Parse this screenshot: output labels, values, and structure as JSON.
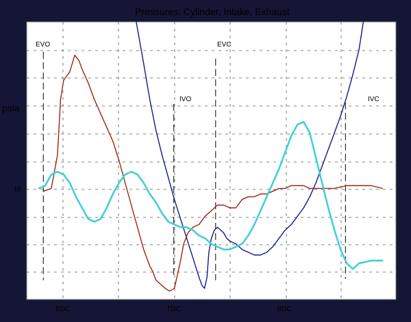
{
  "chart_data": {
    "type": "line",
    "title": "Pressures: Cylinder, Intake, Exhaust",
    "ylabel": "psia",
    "xlabel": "",
    "x_range": [
      0,
      600
    ],
    "y_range": [
      0,
      100
    ],
    "y_tick_labels": [
      {
        "value": 40,
        "label": "15"
      }
    ],
    "x_tick_labels": [
      {
        "value": 120,
        "label": "BDC"
      },
      {
        "value": 300,
        "label": "TDC"
      },
      {
        "value": 480,
        "label": "BDC"
      }
    ],
    "grid": true,
    "event_markers": [
      {
        "label": "EVO",
        "x": 27
      },
      {
        "label": "IVO",
        "x": 239
      },
      {
        "label": "EVC",
        "x": 307
      },
      {
        "label": "IVC",
        "x": 518
      }
    ],
    "series": [
      {
        "key": "cylinder",
        "color": "#0a1a8a",
        "points": [
          [
            178,
            100
          ],
          [
            190,
            85
          ],
          [
            200,
            72
          ],
          [
            210,
            61
          ],
          [
            220,
            52
          ],
          [
            230,
            44
          ],
          [
            240,
            36
          ],
          [
            250,
            29
          ],
          [
            260,
            22
          ],
          [
            270,
            15
          ],
          [
            280,
            8
          ],
          [
            285,
            5
          ],
          [
            289,
            4
          ],
          [
            293,
            8
          ],
          [
            296,
            17
          ],
          [
            300,
            22
          ],
          [
            305,
            25
          ],
          [
            310,
            26
          ],
          [
            315,
            25
          ],
          [
            320,
            24
          ],
          [
            325,
            22
          ],
          [
            330,
            21
          ],
          [
            340,
            20
          ],
          [
            350,
            18
          ],
          [
            360,
            17
          ],
          [
            370,
            16
          ],
          [
            380,
            16
          ],
          [
            390,
            17
          ],
          [
            400,
            19
          ],
          [
            410,
            22
          ],
          [
            420,
            25
          ],
          [
            430,
            27
          ],
          [
            440,
            30
          ],
          [
            450,
            33
          ],
          [
            460,
            37
          ],
          [
            470,
            42
          ],
          [
            480,
            48
          ],
          [
            490,
            54
          ],
          [
            500,
            60
          ],
          [
            510,
            66
          ],
          [
            520,
            73
          ],
          [
            530,
            81
          ],
          [
            540,
            90
          ],
          [
            547,
            100
          ]
        ]
      },
      {
        "key": "exhaust",
        "color": "#a02010",
        "points": [
          [
            27,
            39
          ],
          [
            40,
            40
          ],
          [
            50,
            52
          ],
          [
            55,
            72
          ],
          [
            60,
            79
          ],
          [
            70,
            82
          ],
          [
            78,
            88
          ],
          [
            85,
            86
          ],
          [
            90,
            83
          ],
          [
            100,
            78
          ],
          [
            110,
            72
          ],
          [
            120,
            67
          ],
          [
            130,
            62
          ],
          [
            140,
            57
          ],
          [
            150,
            50
          ],
          [
            160,
            42
          ],
          [
            170,
            34
          ],
          [
            180,
            26
          ],
          [
            190,
            18
          ],
          [
            200,
            12
          ],
          [
            205,
            10
          ],
          [
            210,
            7
          ],
          [
            220,
            5
          ],
          [
            225,
            4
          ],
          [
            232,
            3
          ],
          [
            240,
            4
          ],
          [
            245,
            9
          ],
          [
            250,
            14
          ],
          [
            255,
            20
          ],
          [
            262,
            24
          ],
          [
            270,
            26
          ],
          [
            280,
            27
          ],
          [
            290,
            30
          ],
          [
            300,
            32
          ],
          [
            310,
            34
          ],
          [
            320,
            34
          ],
          [
            330,
            33
          ],
          [
            340,
            33
          ],
          [
            350,
            36
          ],
          [
            360,
            37
          ],
          [
            370,
            37
          ],
          [
            380,
            38
          ],
          [
            390,
            38
          ],
          [
            400,
            39
          ],
          [
            410,
            40
          ],
          [
            420,
            40
          ],
          [
            430,
            41
          ],
          [
            440,
            41
          ],
          [
            450,
            41
          ],
          [
            460,
            40
          ],
          [
            480,
            40
          ],
          [
            500,
            40
          ],
          [
            520,
            41
          ],
          [
            540,
            41
          ],
          [
            560,
            41
          ],
          [
            578,
            40
          ]
        ]
      },
      {
        "key": "intake",
        "color": "#40d0d8",
        "points": [
          [
            20,
            40
          ],
          [
            30,
            41
          ],
          [
            40,
            45
          ],
          [
            50,
            46
          ],
          [
            60,
            45
          ],
          [
            70,
            42
          ],
          [
            80,
            37
          ],
          [
            90,
            33
          ],
          [
            100,
            29
          ],
          [
            110,
            28
          ],
          [
            120,
            29
          ],
          [
            130,
            33
          ],
          [
            140,
            38
          ],
          [
            150,
            42
          ],
          [
            160,
            45
          ],
          [
            170,
            46
          ],
          [
            180,
            45
          ],
          [
            190,
            42
          ],
          [
            200,
            38
          ],
          [
            210,
            35
          ],
          [
            220,
            31
          ],
          [
            230,
            28
          ],
          [
            240,
            27
          ],
          [
            250,
            26
          ],
          [
            260,
            26
          ],
          [
            270,
            25
          ],
          [
            280,
            23
          ],
          [
            290,
            22
          ],
          [
            300,
            20
          ],
          [
            310,
            19
          ],
          [
            320,
            18
          ],
          [
            330,
            18
          ],
          [
            340,
            19
          ],
          [
            350,
            20
          ],
          [
            360,
            23
          ],
          [
            370,
            27
          ],
          [
            380,
            32
          ],
          [
            390,
            37
          ],
          [
            400,
            42
          ],
          [
            410,
            47
          ],
          [
            420,
            53
          ],
          [
            430,
            59
          ],
          [
            440,
            63
          ],
          [
            450,
            64
          ],
          [
            460,
            60
          ],
          [
            470,
            51
          ],
          [
            480,
            42
          ],
          [
            490,
            33
          ],
          [
            500,
            25
          ],
          [
            510,
            18
          ],
          [
            520,
            13
          ],
          [
            530,
            11
          ],
          [
            540,
            13
          ],
          [
            560,
            14
          ],
          [
            578,
            14
          ]
        ]
      }
    ]
  }
}
